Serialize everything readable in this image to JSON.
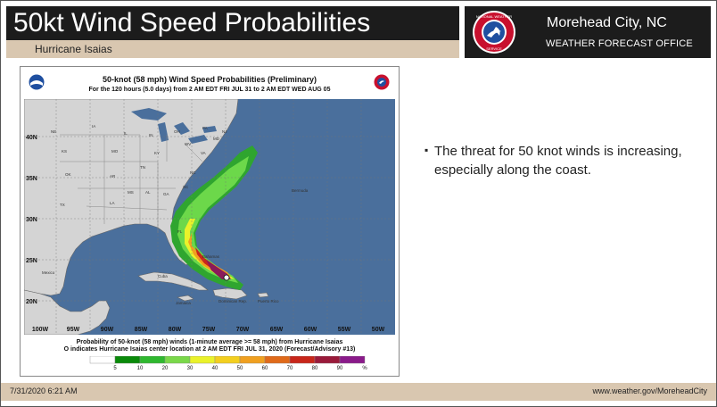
{
  "header": {
    "title": "50kt Wind Speed Probabilities",
    "subtitle": "Hurricane Isaias",
    "office_name": "Morehead City, NC",
    "office_sub": "WEATHER FORECAST OFFICE",
    "logo_text": "NATIONAL WEATHER SERVICE"
  },
  "map": {
    "title": "50-knot (58 mph) Wind Speed Probabilities (Preliminary)",
    "subtitle": "For the 120 hours (5.0 days) from 2 AM EDT FRI JUL 31 to 2 AM EDT WED AUG 05",
    "footer_line1": "Probability of 50-knot (58 mph) winds (1-minute average >= 58 mph) from Hurricane Isaias",
    "footer_line2": "O  indicates Hurricane Isaias center location at 2 AM EDT FRI JUL 31, 2020 (Forecast/Advisory #13)",
    "lat_labels": [
      "40N",
      "35N",
      "30N",
      "25N",
      "20N"
    ],
    "lon_labels": [
      "100W",
      "95W",
      "90W",
      "85W",
      "80W",
      "75W",
      "70W",
      "65W",
      "60W",
      "55W",
      "50W"
    ],
    "place_labels": [
      "NE",
      "IA",
      "IL",
      "IN",
      "OH",
      "PA",
      "NJ",
      "MD",
      "KS",
      "MO",
      "KY",
      "WV",
      "VA",
      "OK",
      "AR",
      "TN",
      "NC",
      "SC",
      "TX",
      "LA",
      "MS",
      "AL",
      "GA",
      "FL",
      "Bermuda",
      "Mexico",
      "Bahamas",
      "Cuba",
      "Jamaica",
      "Dominican Rep.",
      "Puerto Rico"
    ],
    "legend_values": [
      "5",
      "10",
      "20",
      "30",
      "40",
      "50",
      "60",
      "70",
      "80",
      "90",
      "%"
    ],
    "legend_colors": [
      "#ffffff",
      "#0a8a0a",
      "#2fb82f",
      "#7ad84a",
      "#eaf22a",
      "#f3cf1f",
      "#f0a020",
      "#e06a1a",
      "#c8261a",
      "#9a1a3a",
      "#8a1a8a"
    ]
  },
  "bullet": {
    "text": "The threat for 50 knot winds is increasing, especially along the coast."
  },
  "footer": {
    "date": "7/31/2020 6:21 AM",
    "url": "www.weather.gov/MoreheadCity"
  }
}
